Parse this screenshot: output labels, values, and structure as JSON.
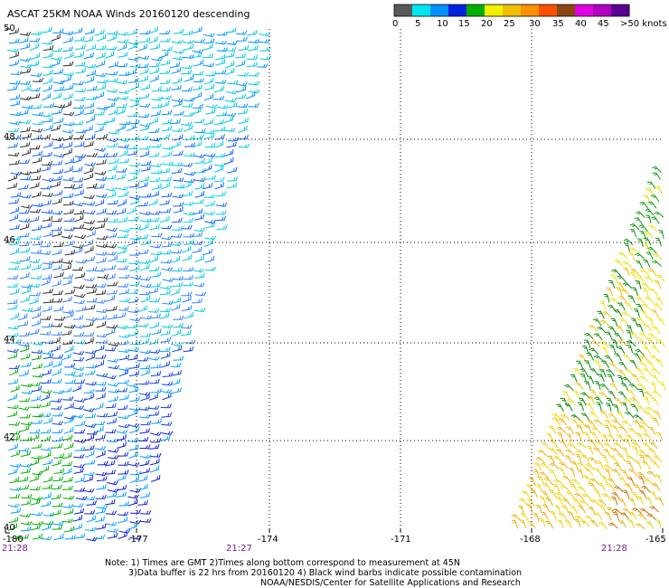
{
  "title": "ASCAT 25KM NOAA Winds 20160120 descending",
  "legend": {
    "colors": [
      "#5a5a5a",
      "#00e6f0",
      "#0090ff",
      "#0020e0",
      "#00b000",
      "#f0f000",
      "#f0c000",
      "#ff9000",
      "#ff5000",
      "#8b4513",
      "#e000e0",
      "#b000c0",
      "#5a0090"
    ],
    "labels": [
      "0",
      "5",
      "10",
      "15",
      "20",
      "25",
      "30",
      "35",
      "40",
      "45",
      ">50 knots"
    ]
  },
  "map": {
    "lon_labels": [
      "-180",
      "-177",
      "-174",
      "-171",
      "-168",
      "-165"
    ],
    "lat_labels": [
      "50",
      "48",
      "46",
      "44",
      "42",
      "40"
    ],
    "time_labels": [
      "21:28",
      "21:27",
      "21:28"
    ]
  },
  "notes": [
    "Note: 1) Times are GMT 2)Times along bottom correspond to measurement at 45N",
    "3)Data buffer is 22 hrs from 20160120 4) Black wind barbs indicate possible contamination",
    "NOAA/NESDIS/Center for Satellite Applications and Research"
  ]
}
